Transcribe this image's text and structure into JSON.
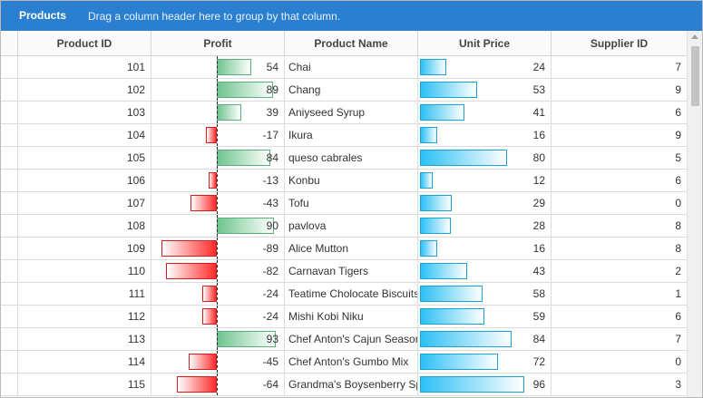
{
  "group_panel": {
    "tab_label": "Products",
    "hint": "Drag a column header here to group by that column."
  },
  "columns": {
    "product_id": "Product ID",
    "profit": "Profit",
    "product_name": "Product Name",
    "unit_price": "Unit Price",
    "supplier_id": "Supplier ID"
  },
  "scales": {
    "profit_max_abs": 100,
    "price_max": 96
  },
  "colors": {
    "header_bar": "#2a7fd0",
    "positive_bar": "#6fc48e",
    "negative_bar": "#ff2a2a",
    "price_bar": "#2cc0f5"
  },
  "rows": [
    {
      "id": "101",
      "profit": 54,
      "name": "Chai",
      "price": 24,
      "supplier": "7"
    },
    {
      "id": "102",
      "profit": 89,
      "name": "Chang",
      "price": 53,
      "supplier": "9"
    },
    {
      "id": "103",
      "profit": 39,
      "name": "Aniyseed Syrup",
      "price": 41,
      "supplier": "6"
    },
    {
      "id": "104",
      "profit": -17,
      "name": "Ikura",
      "price": 16,
      "supplier": "9"
    },
    {
      "id": "105",
      "profit": 84,
      "name": "queso cabrales",
      "price": 80,
      "supplier": "5"
    },
    {
      "id": "106",
      "profit": -13,
      "name": "Konbu",
      "price": 12,
      "supplier": "6"
    },
    {
      "id": "107",
      "profit": -43,
      "name": "Tofu",
      "price": 29,
      "supplier": "0"
    },
    {
      "id": "108",
      "profit": 90,
      "name": "pavlova",
      "price": 28,
      "supplier": "8"
    },
    {
      "id": "109",
      "profit": -89,
      "name": "Alice Mutton",
      "price": 16,
      "supplier": "8"
    },
    {
      "id": "110",
      "profit": -82,
      "name": "Carnavan Tigers",
      "price": 43,
      "supplier": "2"
    },
    {
      "id": "111",
      "profit": -24,
      "name": "Teatime Cholocate Biscuits",
      "price": 58,
      "supplier": "1"
    },
    {
      "id": "112",
      "profit": -24,
      "name": "Mishi Kobi Niku",
      "price": 59,
      "supplier": "6"
    },
    {
      "id": "113",
      "profit": 93,
      "name": "Chef Anton's Cajun Seasoning",
      "price": 84,
      "supplier": "7"
    },
    {
      "id": "114",
      "profit": -45,
      "name": "Chef Anton's Gumbo Mix",
      "price": 72,
      "supplier": "0"
    },
    {
      "id": "115",
      "profit": -64,
      "name": "Grandma's Boysenberry Spread",
      "price": 96,
      "supplier": "3"
    }
  ]
}
